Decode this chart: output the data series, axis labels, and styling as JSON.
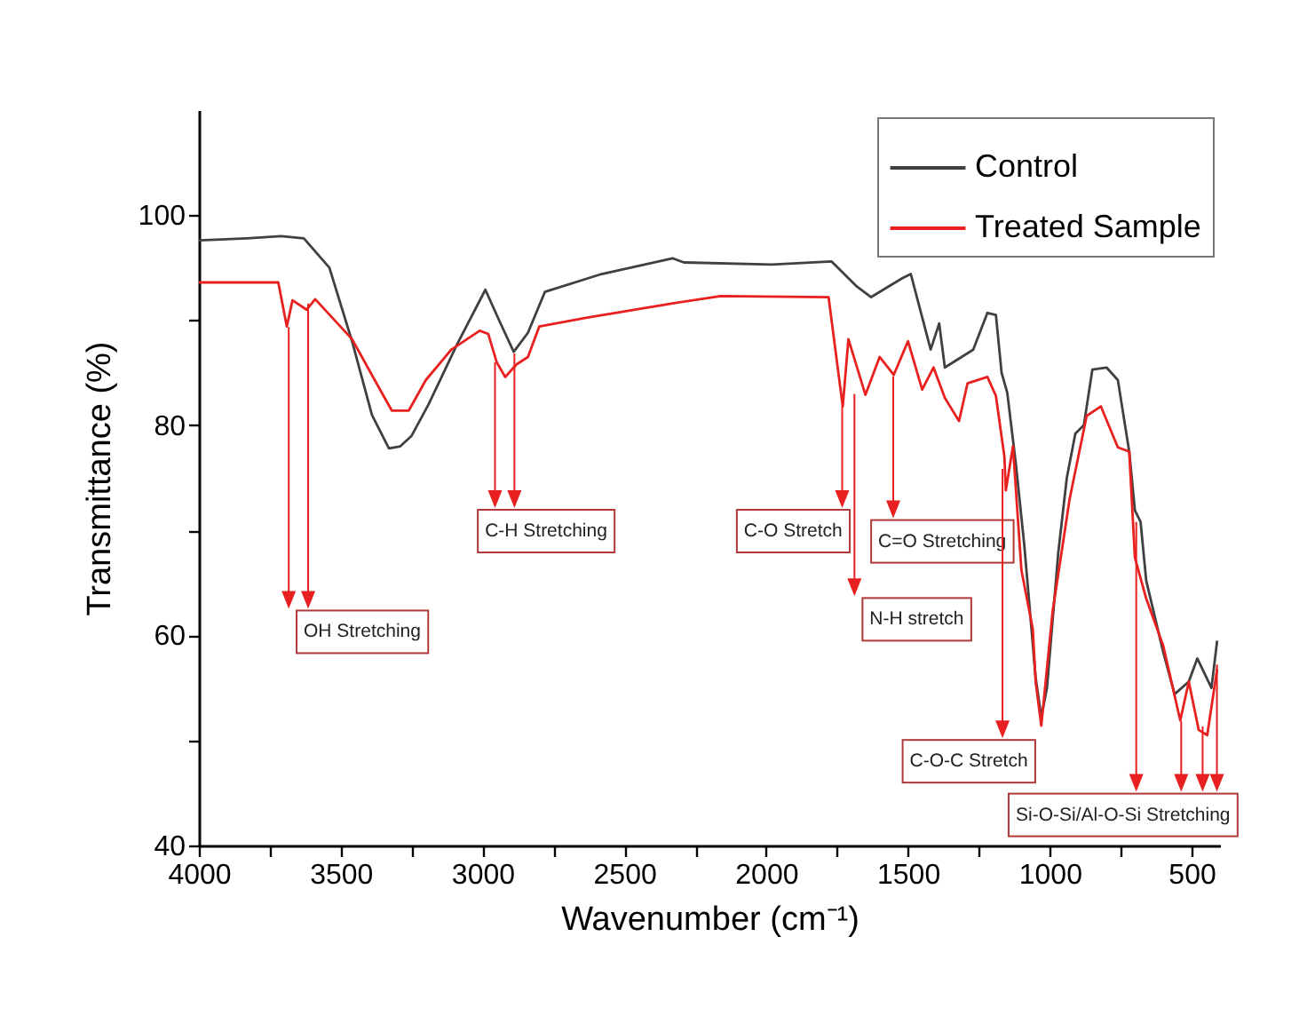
{
  "chart_data": {
    "type": "line",
    "xlabel": "Wavenumber (cm⁻¹)",
    "ylabel": "Transmittance (%)",
    "xlim": [
      4000,
      400
    ],
    "ylim": [
      40,
      110
    ],
    "xticks": [
      4000,
      {
        "value": 3750,
        "label": null
      },
      3500,
      {
        "value": 3250,
        "label": null
      },
      3000,
      {
        "value": 2750,
        "label": null
      },
      2500,
      {
        "value": 2250,
        "label": null
      },
      2000,
      {
        "value": 1750,
        "label": null
      },
      1500,
      {
        "value": 1250,
        "label": null
      },
      1000,
      {
        "value": 750,
        "label": null
      },
      500
    ],
    "yticks": [
      40,
      {
        "value": 50,
        "label": null
      },
      60,
      {
        "value": 70,
        "label": null
      },
      80,
      {
        "value": 90,
        "label": null
      },
      100
    ],
    "legend": "top right",
    "series": [
      {
        "name": "Control",
        "color": "#404040",
        "x": [
          4000,
          3830,
          3710,
          3630,
          3540,
          3460,
          3390,
          3330,
          3290,
          3250,
          3190,
          3090,
          2990,
          2940,
          2890,
          2840,
          2780,
          2580,
          2330,
          2290,
          1980,
          1770,
          1680,
          1630,
          1520,
          1490,
          1420,
          1390,
          1370,
          1270,
          1220,
          1190,
          1170,
          1150,
          1120,
          1090,
          1050,
          1030,
          1010,
          970,
          940,
          910,
          880,
          850,
          800,
          760,
          720,
          700,
          680,
          660,
          600,
          560,
          510,
          480,
          430,
          410
        ],
        "values": [
          97.6,
          97.8,
          98.0,
          97.8,
          95,
          88,
          81,
          77.8,
          78,
          79,
          82,
          87.7,
          92.9,
          89.9,
          87,
          88.8,
          92.7,
          94.4,
          95.9,
          95.5,
          95.3,
          95.6,
          93.2,
          92.2,
          94,
          94.4,
          87.2,
          89.7,
          85.5,
          87.2,
          90.7,
          90.5,
          85,
          83.1,
          76.4,
          68.6,
          56,
          52.2,
          55,
          67.9,
          75,
          79.2,
          80,
          85.3,
          85.5,
          84.3,
          77.5,
          71.9,
          70.8,
          65.2,
          58.4,
          54.4,
          55.6,
          57.8,
          55,
          59.5
        ]
      },
      {
        "name": "Treated Sample",
        "color": "#e8201f",
        "x": [
          4000,
          3720,
          3690,
          3670,
          3620,
          3590,
          3460,
          3380,
          3320,
          3260,
          3200,
          3110,
          3010,
          2980,
          2950,
          2920,
          2880,
          2840,
          2800,
          2640,
          2330,
          2160,
          1780,
          1730,
          1710,
          1650,
          1600,
          1550,
          1500,
          1450,
          1410,
          1370,
          1320,
          1290,
          1220,
          1190,
          1160,
          1155,
          1130,
          1100,
          1060,
          1050,
          1030,
          990,
          930,
          870,
          820,
          760,
          720,
          700,
          660,
          600,
          540,
          510,
          475,
          445,
          410
        ],
        "values": [
          93.6,
          93.6,
          89.4,
          91.9,
          91,
          92,
          88.2,
          84.3,
          81.4,
          81.4,
          84.3,
          87.2,
          89,
          88.7,
          86,
          84.6,
          85.8,
          86.5,
          89.4,
          90.2,
          91.6,
          92.3,
          92.2,
          81.8,
          88.2,
          82.9,
          86.5,
          84.8,
          88,
          83.4,
          85.5,
          82.6,
          80.4,
          84,
          84.6,
          82.8,
          77,
          73.8,
          78,
          66.2,
          60.6,
          55.6,
          51.4,
          62.3,
          73,
          80.9,
          81.8,
          77.9,
          77.5,
          67.4,
          63.5,
          59,
          51.9,
          55.6,
          51,
          50.5,
          56.8
        ]
      }
    ],
    "annotations": [
      "OH Stretching",
      "C-H Stretching",
      "C-O Stretch",
      "N-H stretch",
      "C=O Stretching",
      "C-O-C Stretch",
      "Si-O-Si/Al-O-Si Stretching"
    ]
  }
}
